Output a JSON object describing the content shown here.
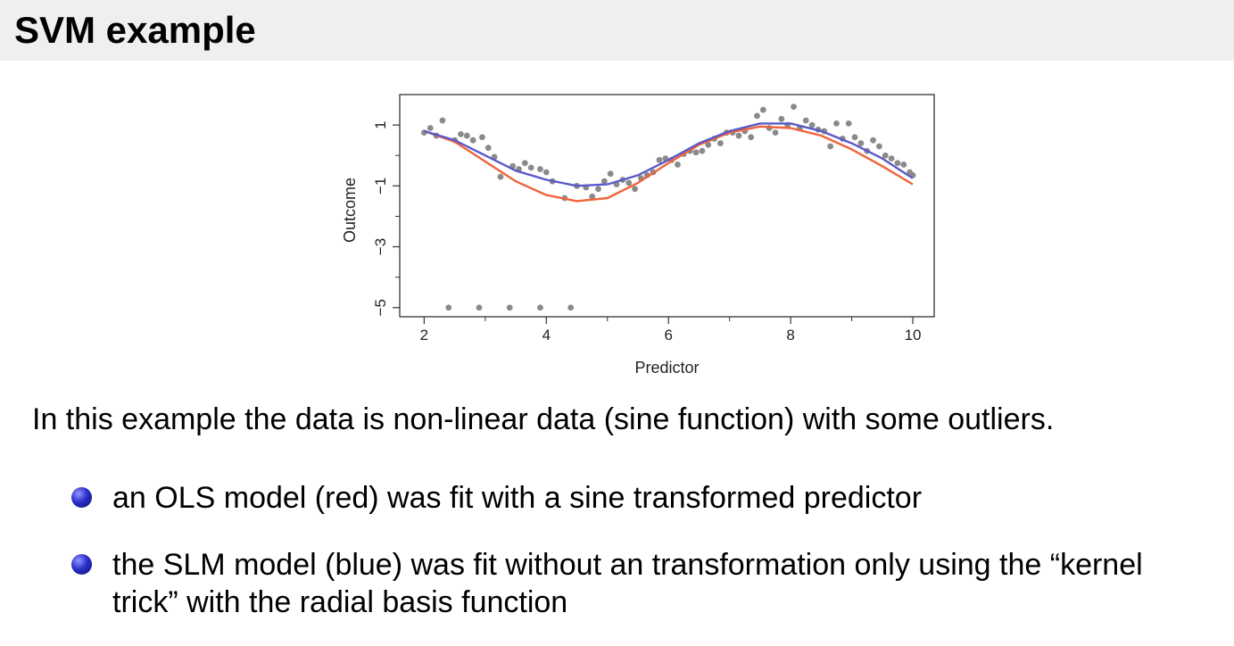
{
  "page": {
    "title": "SVM example",
    "intro": "In this example the data is non-linear data (sine function) with some outliers.",
    "bullets": [
      "an OLS model (red) was fit with a sine transformed predictor",
      "the SLM model (blue) was fit without an transformation only using the “kernel trick” with the radial basis function"
    ]
  },
  "chart_data": {
    "type": "scatter",
    "xlabel": "Predictor",
    "ylabel": "Outcome",
    "xlim": [
      1.6,
      10.35
    ],
    "ylim": [
      -5.3,
      2.0
    ],
    "xticks": [
      2,
      4,
      6,
      8,
      10
    ],
    "yticks": [
      -5,
      -3,
      -1,
      1
    ],
    "point_color": "#8a8a8a",
    "points": [
      [
        2.0,
        0.75
      ],
      [
        2.1,
        0.9
      ],
      [
        2.2,
        0.65
      ],
      [
        2.3,
        1.15
      ],
      [
        2.5,
        0.5
      ],
      [
        2.6,
        0.7
      ],
      [
        2.7,
        0.65
      ],
      [
        2.8,
        0.5
      ],
      [
        2.95,
        0.6
      ],
      [
        3.05,
        0.25
      ],
      [
        3.15,
        -0.05
      ],
      [
        3.25,
        -0.7
      ],
      [
        3.45,
        -0.35
      ],
      [
        3.55,
        -0.45
      ],
      [
        3.65,
        -0.25
      ],
      [
        3.75,
        -0.4
      ],
      [
        3.9,
        -0.45
      ],
      [
        4.0,
        -0.55
      ],
      [
        4.1,
        -0.85
      ],
      [
        4.3,
        -1.4
      ],
      [
        4.5,
        -1.0
      ],
      [
        4.65,
        -1.05
      ],
      [
        4.75,
        -1.35
      ],
      [
        4.85,
        -1.1
      ],
      [
        4.95,
        -0.85
      ],
      [
        5.05,
        -0.6
      ],
      [
        5.15,
        -0.95
      ],
      [
        5.25,
        -0.8
      ],
      [
        5.35,
        -0.9
      ],
      [
        5.45,
        -1.1
      ],
      [
        5.55,
        -0.75
      ],
      [
        5.65,
        -0.65
      ],
      [
        5.75,
        -0.55
      ],
      [
        5.85,
        -0.15
      ],
      [
        5.95,
        -0.1
      ],
      [
        6.05,
        -0.15
      ],
      [
        6.15,
        -0.3
      ],
      [
        6.25,
        0.05
      ],
      [
        6.35,
        0.15
      ],
      [
        6.45,
        0.1
      ],
      [
        6.55,
        0.15
      ],
      [
        6.65,
        0.35
      ],
      [
        6.75,
        0.55
      ],
      [
        6.85,
        0.4
      ],
      [
        6.95,
        0.75
      ],
      [
        7.05,
        0.75
      ],
      [
        7.15,
        0.65
      ],
      [
        7.25,
        0.8
      ],
      [
        7.35,
        0.6
      ],
      [
        7.45,
        1.3
      ],
      [
        7.55,
        1.5
      ],
      [
        7.65,
        0.9
      ],
      [
        7.75,
        0.75
      ],
      [
        7.85,
        1.2
      ],
      [
        7.95,
        1.0
      ],
      [
        8.05,
        1.6
      ],
      [
        8.15,
        0.9
      ],
      [
        8.25,
        1.15
      ],
      [
        8.35,
        1.0
      ],
      [
        8.45,
        0.85
      ],
      [
        8.55,
        0.8
      ],
      [
        8.65,
        0.3
      ],
      [
        8.75,
        1.05
      ],
      [
        8.85,
        0.55
      ],
      [
        8.95,
        1.05
      ],
      [
        9.05,
        0.6
      ],
      [
        9.15,
        0.4
      ],
      [
        9.25,
        0.15
      ],
      [
        9.35,
        0.5
      ],
      [
        9.45,
        0.3
      ],
      [
        9.55,
        0.0
      ],
      [
        9.65,
        -0.1
      ],
      [
        9.75,
        -0.25
      ],
      [
        9.85,
        -0.3
      ],
      [
        9.95,
        -0.55
      ],
      [
        10.0,
        -0.65
      ],
      [
        2.4,
        -5.0
      ],
      [
        2.9,
        -5.0
      ],
      [
        3.4,
        -5.0
      ],
      [
        3.9,
        -5.0
      ],
      [
        4.4,
        -5.0
      ]
    ],
    "series": [
      {
        "color": "#f0643c",
        "values": [
          [
            2.0,
            0.8
          ],
          [
            2.5,
            0.45
          ],
          [
            3.0,
            -0.2
          ],
          [
            3.5,
            -0.85
          ],
          [
            4.0,
            -1.3
          ],
          [
            4.5,
            -1.5
          ],
          [
            5.0,
            -1.4
          ],
          [
            5.5,
            -0.9
          ],
          [
            6.0,
            -0.25
          ],
          [
            6.5,
            0.35
          ],
          [
            7.0,
            0.75
          ],
          [
            7.5,
            0.95
          ],
          [
            8.0,
            0.9
          ],
          [
            8.5,
            0.65
          ],
          [
            9.0,
            0.2
          ],
          [
            9.5,
            -0.35
          ],
          [
            10.0,
            -0.95
          ]
        ]
      },
      {
        "color": "#5a5ac8",
        "values": [
          [
            2.0,
            0.8
          ],
          [
            2.5,
            0.5
          ],
          [
            3.0,
            0.0
          ],
          [
            3.5,
            -0.5
          ],
          [
            4.0,
            -0.8
          ],
          [
            4.5,
            -1.0
          ],
          [
            5.0,
            -0.95
          ],
          [
            5.5,
            -0.65
          ],
          [
            6.0,
            -0.15
          ],
          [
            6.5,
            0.4
          ],
          [
            7.0,
            0.8
          ],
          [
            7.5,
            1.05
          ],
          [
            8.0,
            1.05
          ],
          [
            8.5,
            0.8
          ],
          [
            9.0,
            0.4
          ],
          [
            9.5,
            -0.1
          ],
          [
            10.0,
            -0.75
          ]
        ]
      }
    ]
  }
}
